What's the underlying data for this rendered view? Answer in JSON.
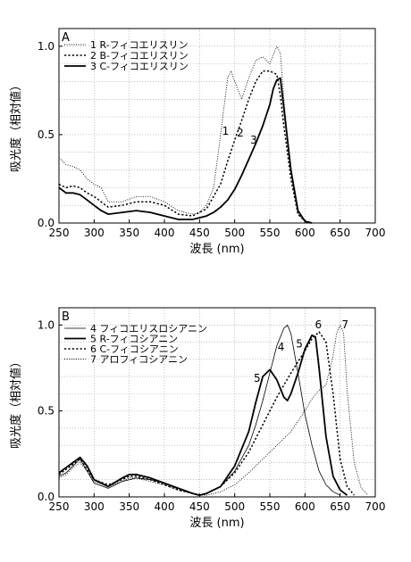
{
  "chart_data": [
    {
      "type": "line",
      "panel_label": "A",
      "xlabel": "波長 (nm)",
      "ylabel": "吸光度（相対値）",
      "xlim": [
        250,
        700
      ],
      "ylim": [
        0,
        1.1
      ],
      "xticks": [
        250,
        300,
        350,
        400,
        450,
        500,
        550,
        600,
        650,
        700
      ],
      "yticks": [
        0.0,
        0.5,
        1.0
      ],
      "ytick_labels": [
        "0.0",
        "0.5",
        "1.0"
      ],
      "grid": true,
      "legend_position": "top-left",
      "series": [
        {
          "name": "1  R-フィコエリスリン",
          "style": "dotted-thin",
          "color": "#000000",
          "x": [
            250,
            260,
            270,
            280,
            290,
            300,
            310,
            320,
            340,
            360,
            380,
            400,
            420,
            440,
            450,
            460,
            470,
            480,
            490,
            495,
            500,
            510,
            520,
            530,
            540,
            550,
            555,
            560,
            565,
            570,
            580,
            590,
            600,
            610
          ],
          "y": [
            0.37,
            0.33,
            0.32,
            0.3,
            0.25,
            0.22,
            0.2,
            0.12,
            0.12,
            0.15,
            0.15,
            0.12,
            0.07,
            0.05,
            0.06,
            0.1,
            0.2,
            0.5,
            0.82,
            0.86,
            0.8,
            0.7,
            0.82,
            0.92,
            0.94,
            0.9,
            0.95,
            1.0,
            0.96,
            0.7,
            0.3,
            0.05,
            0.01,
            0.0
          ]
        },
        {
          "name": "2  B-フィコエリスリン",
          "style": "dotted",
          "color": "#000000",
          "x": [
            250,
            260,
            270,
            280,
            290,
            300,
            320,
            340,
            360,
            380,
            400,
            420,
            440,
            460,
            480,
            490,
            500,
            510,
            520,
            530,
            540,
            550,
            555,
            560,
            565,
            570,
            580,
            590,
            600,
            610
          ],
          "y": [
            0.22,
            0.2,
            0.21,
            0.2,
            0.17,
            0.15,
            0.09,
            0.1,
            0.12,
            0.12,
            0.1,
            0.05,
            0.04,
            0.08,
            0.22,
            0.35,
            0.47,
            0.58,
            0.7,
            0.8,
            0.86,
            0.86,
            0.85,
            0.84,
            0.72,
            0.55,
            0.25,
            0.05,
            0.01,
            0.0
          ]
        },
        {
          "name": "3  C-フィコエリスリン",
          "style": "solid",
          "color": "#000000",
          "x": [
            250,
            260,
            270,
            280,
            290,
            300,
            310,
            320,
            340,
            360,
            380,
            400,
            420,
            440,
            450,
            460,
            470,
            480,
            490,
            500,
            510,
            520,
            530,
            540,
            550,
            555,
            560,
            565,
            570,
            580,
            590,
            600,
            610
          ],
          "y": [
            0.2,
            0.17,
            0.17,
            0.16,
            0.13,
            0.1,
            0.07,
            0.05,
            0.06,
            0.07,
            0.06,
            0.04,
            0.02,
            0.02,
            0.03,
            0.04,
            0.06,
            0.09,
            0.13,
            0.19,
            0.27,
            0.36,
            0.45,
            0.55,
            0.67,
            0.76,
            0.81,
            0.82,
            0.65,
            0.3,
            0.07,
            0.01,
            0.0
          ]
        }
      ],
      "annotations": [
        {
          "text": "1",
          "x": 487,
          "y": 0.5
        },
        {
          "text": "2",
          "x": 508,
          "y": 0.49
        },
        {
          "text": "3",
          "x": 527,
          "y": 0.45
        }
      ]
    },
    {
      "type": "line",
      "panel_label": "B",
      "xlabel": "波長 (nm)",
      "ylabel": "吸光度（相対値）",
      "xlim": [
        250,
        700
      ],
      "ylim": [
        0,
        1.1
      ],
      "xticks": [
        250,
        300,
        350,
        400,
        450,
        500,
        550,
        600,
        650,
        700
      ],
      "yticks": [
        0.0,
        0.5,
        1.0
      ],
      "ytick_labels": [
        "0.0",
        "0.5",
        "1.0"
      ],
      "grid": true,
      "legend_position": "top-left",
      "series": [
        {
          "name": "4  フィコエリスロシアニン",
          "style": "solid-thin",
          "color": "#000000",
          "x": [
            250,
            260,
            270,
            280,
            290,
            300,
            320,
            340,
            360,
            380,
            400,
            420,
            440,
            450,
            460,
            480,
            500,
            520,
            530,
            540,
            550,
            560,
            570,
            575,
            580,
            590,
            600,
            610,
            620,
            630,
            640,
            650
          ],
          "y": [
            0.12,
            0.14,
            0.18,
            0.22,
            0.15,
            0.08,
            0.05,
            0.09,
            0.11,
            0.1,
            0.08,
            0.05,
            0.02,
            0.01,
            0.02,
            0.06,
            0.15,
            0.3,
            0.42,
            0.56,
            0.72,
            0.88,
            0.98,
            1.0,
            0.95,
            0.72,
            0.48,
            0.3,
            0.15,
            0.07,
            0.03,
            0.01
          ]
        },
        {
          "name": "5  R-フィコシアニン",
          "style": "solid",
          "color": "#000000",
          "x": [
            250,
            260,
            270,
            280,
            290,
            300,
            320,
            340,
            350,
            360,
            380,
            400,
            420,
            440,
            450,
            460,
            480,
            500,
            520,
            530,
            540,
            550,
            560,
            570,
            575,
            580,
            590,
            600,
            610,
            615,
            620,
            630,
            640,
            650,
            660
          ],
          "y": [
            0.14,
            0.17,
            0.2,
            0.23,
            0.18,
            0.1,
            0.06,
            0.11,
            0.13,
            0.13,
            0.11,
            0.08,
            0.05,
            0.02,
            0.01,
            0.02,
            0.06,
            0.18,
            0.38,
            0.55,
            0.7,
            0.74,
            0.68,
            0.58,
            0.56,
            0.6,
            0.72,
            0.86,
            0.94,
            0.93,
            0.75,
            0.35,
            0.12,
            0.04,
            0.01
          ]
        },
        {
          "name": "6  C-フィコシアニン",
          "style": "dotted",
          "color": "#000000",
          "x": [
            250,
            260,
            270,
            280,
            290,
            300,
            320,
            340,
            350,
            360,
            380,
            400,
            420,
            440,
            450,
            460,
            480,
            500,
            520,
            540,
            560,
            580,
            600,
            610,
            620,
            630,
            640,
            650,
            660,
            670
          ],
          "y": [
            0.13,
            0.16,
            0.19,
            0.22,
            0.16,
            0.1,
            0.07,
            0.1,
            0.12,
            0.12,
            0.1,
            0.07,
            0.04,
            0.02,
            0.01,
            0.02,
            0.06,
            0.14,
            0.26,
            0.42,
            0.58,
            0.72,
            0.85,
            0.92,
            0.96,
            0.9,
            0.6,
            0.22,
            0.06,
            0.01
          ]
        },
        {
          "name": "7  アロフィコシアニン",
          "style": "dotted-thin",
          "color": "#000000",
          "x": [
            250,
            260,
            270,
            280,
            290,
            300,
            320,
            340,
            350,
            360,
            380,
            400,
            420,
            440,
            450,
            460,
            480,
            500,
            520,
            540,
            560,
            580,
            600,
            610,
            620,
            630,
            640,
            645,
            650,
            655,
            660,
            670,
            680,
            690
          ],
          "y": [
            0.11,
            0.13,
            0.17,
            0.2,
            0.15,
            0.09,
            0.06,
            0.09,
            0.11,
            0.11,
            0.09,
            0.07,
            0.04,
            0.02,
            0.01,
            0.01,
            0.03,
            0.07,
            0.14,
            0.22,
            0.3,
            0.38,
            0.5,
            0.57,
            0.62,
            0.65,
            0.82,
            0.95,
            1.0,
            0.95,
            0.62,
            0.2,
            0.05,
            0.01
          ]
        }
      ],
      "annotations": [
        {
          "text": "4",
          "x": 566,
          "y": 0.85
        },
        {
          "text": "5",
          "x": 592,
          "y": 0.87
        },
        {
          "text": "5",
          "x": 532,
          "y": 0.67
        },
        {
          "text": "6",
          "x": 619,
          "y": 0.98
        },
        {
          "text": "7",
          "x": 657,
          "y": 0.98
        }
      ]
    }
  ]
}
